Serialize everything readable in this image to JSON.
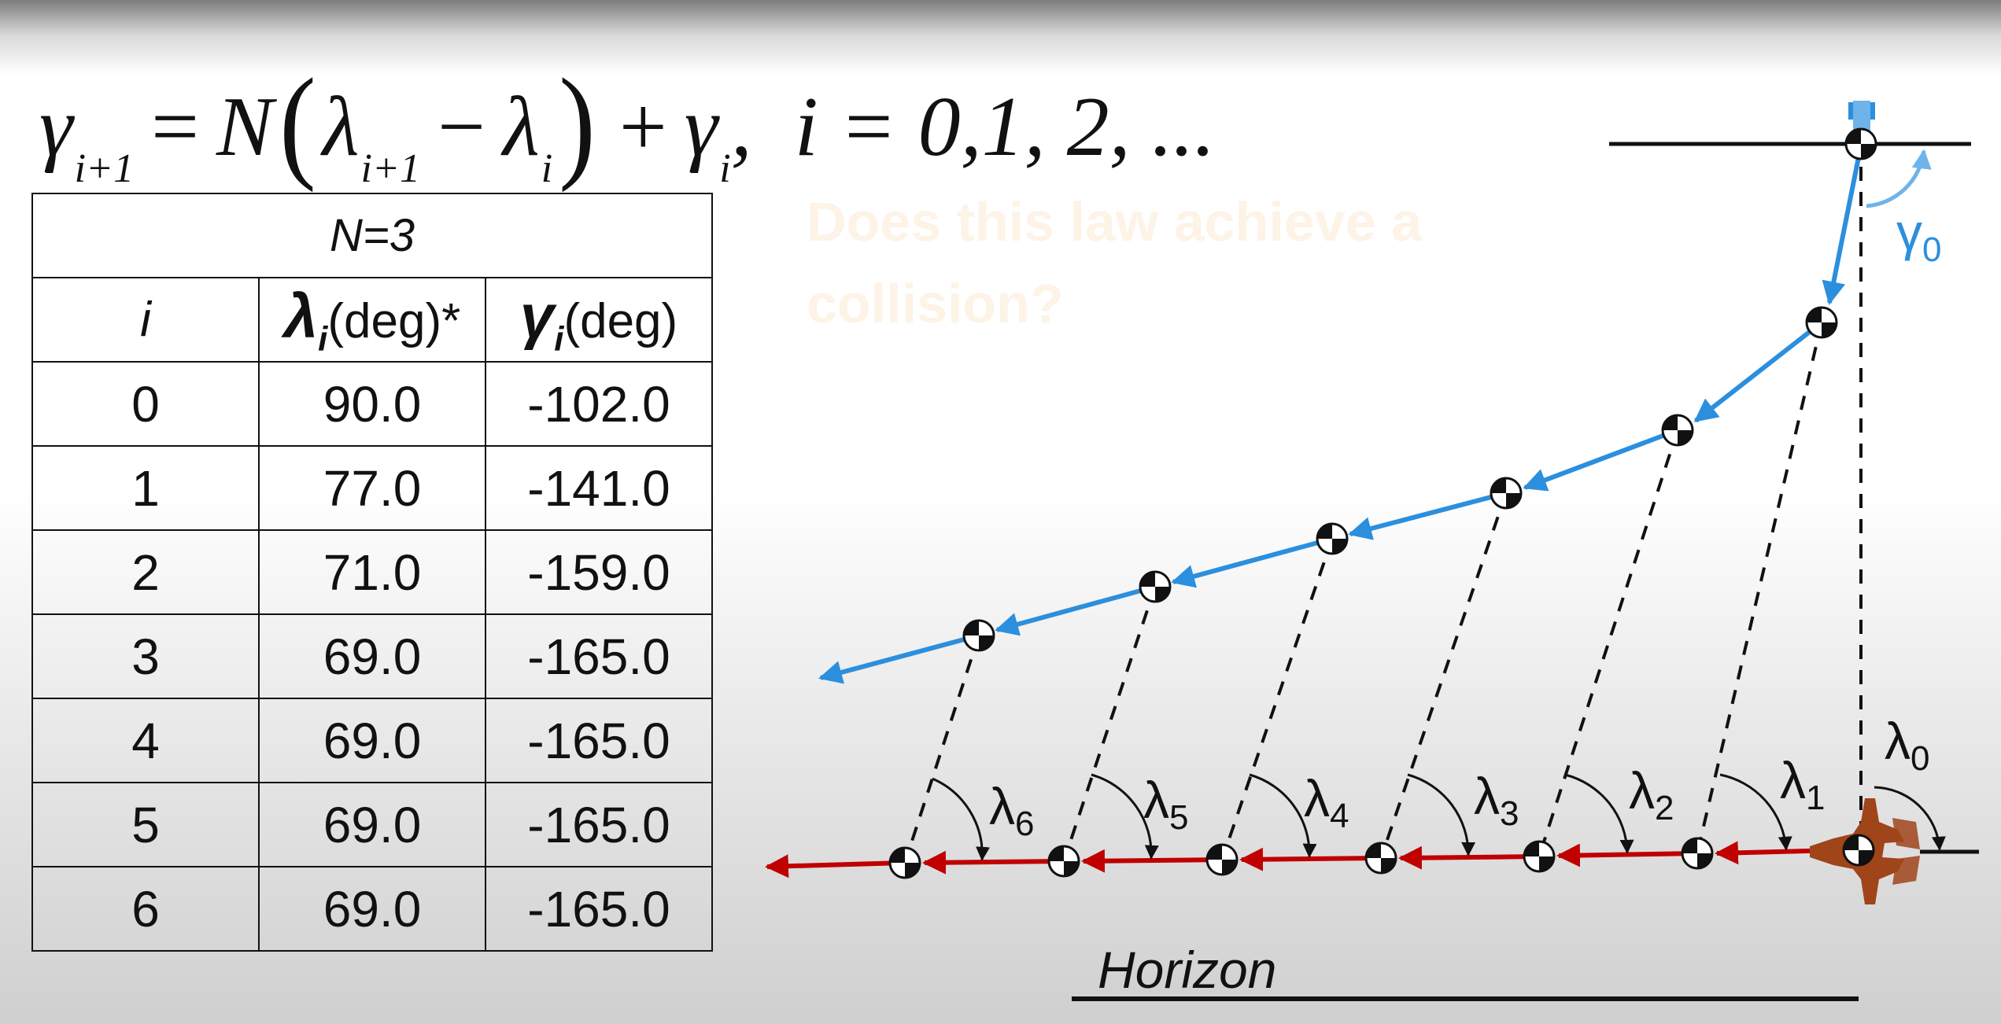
{
  "formula": {
    "gamma": "γ",
    "sub_ip1": "i+1",
    "equals": "=",
    "N": "N",
    "lparen": "(",
    "lambda": "λ",
    "sub_ip1b": "i+1",
    "minus": "−",
    "lambda2": "λ",
    "sub_i": "i",
    "rparen": ")",
    "plus": "+",
    "gamma2": "γ",
    "sub_i2": "i",
    "tail": ",  i = 0,1, 2, ..."
  },
  "table": {
    "caption": "N=3",
    "header_i": "i",
    "header_lambda_sym": "λ",
    "header_lambda_sub": "i",
    "header_lambda_unit": "(deg)*",
    "header_gamma_sym": "γ",
    "header_gamma_sub": "i",
    "header_gamma_unit": "(deg)",
    "rows": [
      {
        "i": "0",
        "lambda": "90.0",
        "gamma": "-102.0"
      },
      {
        "i": "1",
        "lambda": "77.0",
        "gamma": "-141.0"
      },
      {
        "i": "2",
        "lambda": "71.0",
        "gamma": "-159.0"
      },
      {
        "i": "3",
        "lambda": "69.0",
        "gamma": "-165.0"
      },
      {
        "i": "4",
        "lambda": "69.0",
        "gamma": "-165.0"
      },
      {
        "i": "5",
        "lambda": "69.0",
        "gamma": "-165.0"
      },
      {
        "i": "6",
        "lambda": "69.0",
        "gamma": "-165.0"
      }
    ]
  },
  "question": "Does this law achieve a collision?",
  "diagram": {
    "gamma0_label": "γ",
    "gamma0_sub": "0",
    "lambda_labels": [
      {
        "sym": "λ",
        "sub": "0"
      },
      {
        "sym": "λ",
        "sub": "1"
      },
      {
        "sym": "λ",
        "sub": "2"
      },
      {
        "sym": "λ",
        "sub": "3"
      },
      {
        "sym": "λ",
        "sub": "4"
      },
      {
        "sym": "λ",
        "sub": "5"
      },
      {
        "sym": "λ",
        "sub": "6"
      }
    ],
    "horizon_label": "Horizon",
    "colors": {
      "pursuer": "#2b8fde",
      "pursuer_light": "#6fb3e8",
      "target": "#c00000",
      "aircraft": "#a0441a",
      "los": "#111111"
    }
  }
}
